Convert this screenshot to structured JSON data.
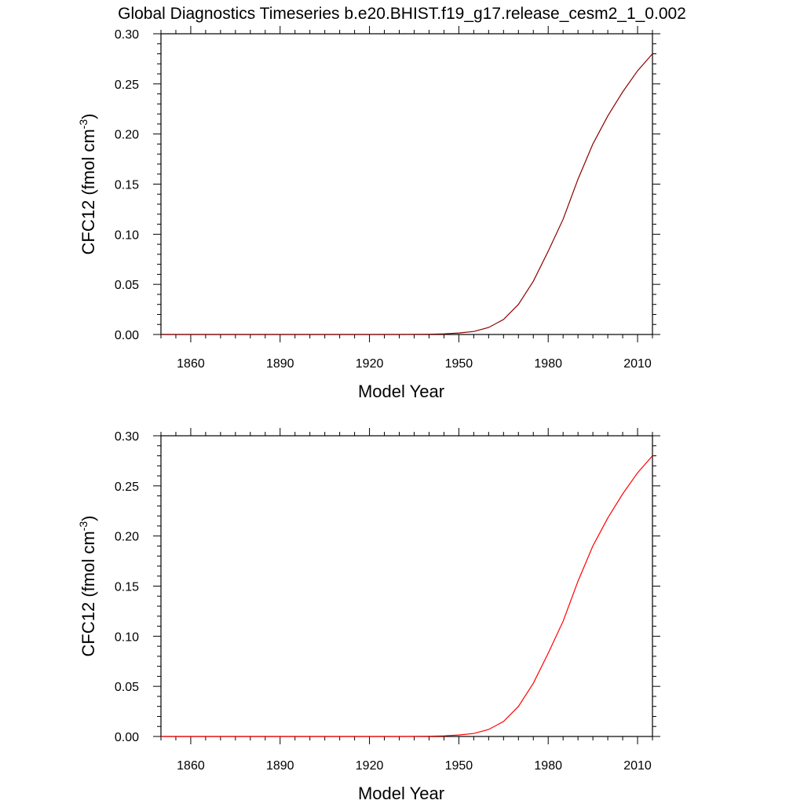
{
  "title": "Global Diagnostics Timeseries b.e20.BHIST.f19_g17.release_cesm2_1_0.002",
  "chart_data": [
    {
      "type": "line",
      "xlabel": "Model Year",
      "ylabel_base": "CFC12 (fmol cm",
      "ylabel_sup": "-3",
      "ylabel_close": ")",
      "xlim": [
        1850,
        2015
      ],
      "ylim": [
        0.0,
        0.3
      ],
      "xticks": [
        1860,
        1890,
        1920,
        1950,
        1980,
        2010
      ],
      "xtick_labels": [
        "1860",
        "1890",
        "1920",
        "1950",
        "1980",
        "2010"
      ],
      "yticks": [
        0.0,
        0.05,
        0.1,
        0.15,
        0.2,
        0.25,
        0.3
      ],
      "ytick_labels": [
        "0.00",
        "0.05",
        "0.10",
        "0.15",
        "0.20",
        "0.25",
        "0.30"
      ],
      "grid": false,
      "series": [
        {
          "color": "#8b0000",
          "x": [
            1850,
            1900,
            1930,
            1940,
            1945,
            1950,
            1955,
            1960,
            1965,
            1970,
            1975,
            1980,
            1985,
            1990,
            1995,
            2000,
            2005,
            2010,
            2015
          ],
          "y": [
            0.0,
            0.0,
            0.0,
            0.0002,
            0.0006,
            0.0015,
            0.003,
            0.007,
            0.015,
            0.03,
            0.053,
            0.083,
            0.115,
            0.155,
            0.19,
            0.218,
            0.242,
            0.263,
            0.28
          ]
        }
      ]
    },
    {
      "type": "line",
      "xlabel": "Model Year",
      "ylabel_base": "CFC12 (fmol cm",
      "ylabel_sup": "-3",
      "ylabel_close": ")",
      "xlim": [
        1850,
        2015
      ],
      "ylim": [
        0.0,
        0.3
      ],
      "xticks": [
        1860,
        1890,
        1920,
        1950,
        1980,
        2010
      ],
      "xtick_labels": [
        "1860",
        "1890",
        "1920",
        "1950",
        "1980",
        "2010"
      ],
      "yticks": [
        0.0,
        0.05,
        0.1,
        0.15,
        0.2,
        0.25,
        0.3
      ],
      "ytick_labels": [
        "0.00",
        "0.05",
        "0.10",
        "0.15",
        "0.20",
        "0.25",
        "0.30"
      ],
      "grid": false,
      "series": [
        {
          "color": "#ff0000",
          "x": [
            1850,
            1900,
            1930,
            1940,
            1945,
            1950,
            1955,
            1960,
            1965,
            1970,
            1975,
            1980,
            1985,
            1990,
            1995,
            2000,
            2005,
            2010,
            2015
          ],
          "y": [
            0.0,
            0.0,
            0.0,
            0.0002,
            0.0006,
            0.0015,
            0.003,
            0.007,
            0.015,
            0.03,
            0.053,
            0.083,
            0.115,
            0.155,
            0.19,
            0.218,
            0.242,
            0.263,
            0.28
          ]
        }
      ]
    }
  ]
}
